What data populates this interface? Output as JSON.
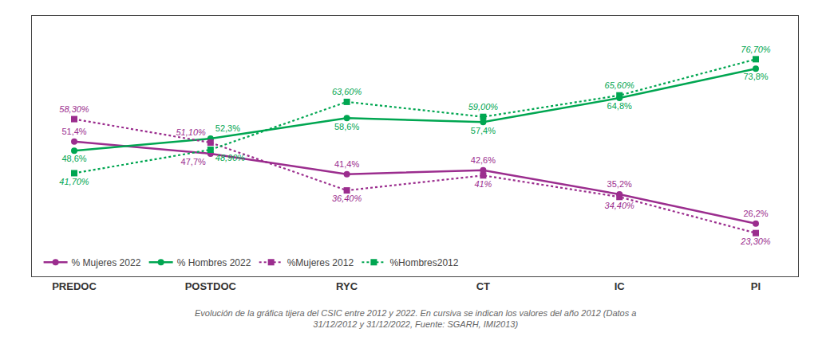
{
  "chart_data": {
    "type": "line",
    "categories": [
      "PREDOC",
      "POSTDOC",
      "RYC",
      "CT",
      "IC",
      "PI"
    ],
    "series": [
      {
        "name": "% Mujeres 2022",
        "color": "#9B2D8E",
        "marker": "circle",
        "line_style": "solid",
        "values": [
          51.4,
          47.7,
          41.4,
          42.6,
          35.2,
          26.2
        ],
        "value_labels": [
          "51,4%",
          "47,7%",
          "41,4%",
          "42,6%",
          "35,2%",
          "26,2%"
        ]
      },
      {
        "name": "% Hombres 2022",
        "color": "#00A651",
        "marker": "circle",
        "line_style": "solid",
        "values": [
          48.6,
          52.3,
          58.6,
          57.4,
          64.8,
          73.8
        ],
        "value_labels": [
          "48,6%",
          "52,3%",
          "58,6%",
          "57,4%",
          "64,8%",
          "73,8%"
        ]
      },
      {
        "name": "%Mujeres 2012",
        "color": "#9B2D8E",
        "marker": "square",
        "line_style": "dotted",
        "values": [
          58.3,
          51.1,
          36.4,
          41.0,
          34.4,
          23.3
        ],
        "value_labels": [
          "58,30%",
          "51,10%",
          "36,40%",
          "41%",
          "34,40%",
          "23,30%"
        ]
      },
      {
        "name": "%Hombres2012",
        "color": "#00A651",
        "marker": "square",
        "line_style": "dotted",
        "values": [
          41.7,
          48.9,
          63.6,
          59.0,
          65.6,
          76.7
        ],
        "value_labels": [
          "41,70%",
          "48,90%",
          "63,60%",
          "59,00%",
          "65,60%",
          "76,70%"
        ]
      }
    ],
    "ylim": [
      10,
      90
    ],
    "grid": false,
    "legend": "lower left",
    "data_labels": true,
    "tick_labels": "x",
    "caption": "Evolución de la gráfica tijera del CSIC entre 2012 y 2022. En cursiva se indican los valores del año 2012 (Datos a\n31/12/2012 y 31/12/2022, Fuente: SGARH, IMI2013)"
  }
}
